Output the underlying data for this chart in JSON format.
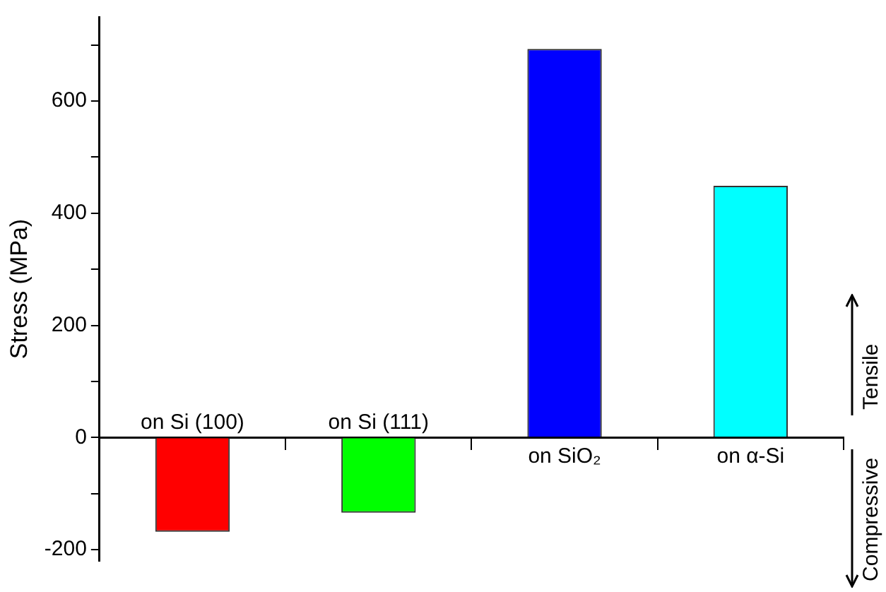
{
  "chart_data": {
    "type": "bar",
    "ylabel": "Stress (MPa)",
    "categories": [
      "on Si (100)",
      "on Si (111)",
      "on SiO₂",
      "on α-Si"
    ],
    "values": [
      -168,
      -134,
      693,
      449
    ],
    "colors": [
      "#ff0000",
      "#00ff00",
      "#0000ff",
      "#00ffff"
    ],
    "ylim": [
      -220,
      750
    ],
    "yticks": [
      -200,
      {
        "value": -100,
        "label": null
      },
      0,
      {
        "value": 100,
        "label": null
      },
      200,
      {
        "value": 300,
        "label": null
      },
      400,
      {
        "value": 500,
        "label": null
      },
      600,
      {
        "value": 700,
        "label": null
      }
    ],
    "grid": false,
    "legend": false,
    "annotations": [
      "Tensile",
      "Compressive"
    ]
  }
}
